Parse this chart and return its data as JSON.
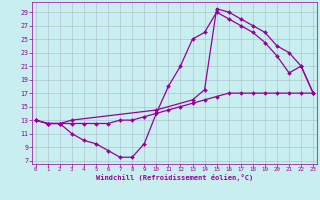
{
  "xlabel": "Windchill (Refroidissement éolien,°C)",
  "bg_color": "#c8eef0",
  "grid_color": "#aabbcc",
  "line_color": "#990099",
  "marker": "D",
  "markersize": 2.0,
  "linewidth": 0.9,
  "xlim": [
    -0.3,
    23.3
  ],
  "ylim": [
    6.5,
    30.5
  ],
  "xticks": [
    0,
    1,
    2,
    3,
    4,
    5,
    6,
    7,
    8,
    9,
    10,
    11,
    12,
    13,
    14,
    15,
    16,
    17,
    18,
    19,
    20,
    21,
    22,
    23
  ],
  "yticks": [
    7,
    9,
    11,
    13,
    15,
    17,
    19,
    21,
    23,
    25,
    27,
    29
  ],
  "line1_x": [
    0,
    1,
    2,
    3,
    4,
    5,
    6,
    7,
    8,
    9,
    10,
    11,
    12,
    13,
    14,
    15,
    16,
    17,
    18,
    19,
    20,
    21,
    22,
    23
  ],
  "line1_y": [
    13,
    12.5,
    12.5,
    12.5,
    12.5,
    12.5,
    12.5,
    13,
    13,
    13.5,
    14,
    14.5,
    15,
    15.5,
    16,
    16.5,
    17,
    17,
    17,
    17,
    17,
    17,
    17,
    17
  ],
  "line2_x": [
    0,
    1,
    2,
    3,
    4,
    5,
    6,
    7,
    8,
    9,
    10,
    11,
    12,
    13,
    14,
    15,
    16,
    17,
    18,
    19,
    20,
    21,
    22,
    23
  ],
  "line2_y": [
    13,
    12.5,
    12.5,
    11,
    10,
    9.5,
    8.5,
    7.5,
    7.5,
    9.5,
    14,
    18,
    21,
    25,
    26,
    29,
    28,
    27,
    26,
    24.5,
    22.5,
    20,
    21,
    17
  ],
  "line3_x": [
    0,
    1,
    2,
    3,
    10,
    13,
    14,
    15,
    16,
    17,
    18,
    19,
    20,
    21,
    22,
    23
  ],
  "line3_y": [
    13,
    12.5,
    12.5,
    13,
    14.5,
    16,
    17.5,
    29.5,
    29,
    28,
    27,
    26,
    24,
    23,
    21,
    17
  ]
}
